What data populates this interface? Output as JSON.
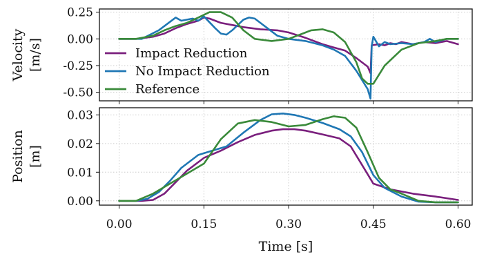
{
  "chart_data": [
    {
      "type": "line",
      "ylabel": [
        "Velocity",
        "[m/s]"
      ],
      "xlim": [
        -0.035,
        0.625
      ],
      "ylim": [
        -0.58,
        0.28
      ],
      "yticks": [
        0.25,
        0.0,
        -0.25,
        -0.5
      ],
      "ytick_labels": [
        "0.25",
        "0.00",
        "-0.25",
        "-0.50"
      ],
      "grid": true,
      "legend_position": "lower-left",
      "series": [
        {
          "name": "Impact Reduction",
          "color": "#7a1f7d",
          "x": [
            0,
            0.03,
            0.06,
            0.08,
            0.1,
            0.12,
            0.14,
            0.15,
            0.16,
            0.18,
            0.2,
            0.22,
            0.25,
            0.28,
            0.3,
            0.33,
            0.36,
            0.38,
            0.4,
            0.42,
            0.44,
            0.445,
            0.447,
            0.46,
            0.47,
            0.48,
            0.49,
            0.5,
            0.52,
            0.54,
            0.56,
            0.58,
            0.6
          ],
          "y": [
            0.0,
            0.0,
            0.02,
            0.05,
            0.1,
            0.14,
            0.17,
            0.2,
            0.19,
            0.15,
            0.13,
            0.11,
            0.09,
            0.08,
            0.06,
            0.01,
            -0.05,
            -0.08,
            -0.11,
            -0.18,
            -0.26,
            -0.32,
            -0.06,
            -0.05,
            -0.06,
            -0.04,
            -0.05,
            -0.03,
            -0.05,
            -0.03,
            -0.04,
            -0.02,
            -0.05
          ]
        },
        {
          "name": "No Impact Reduction",
          "color": "#1f77b4",
          "x": [
            0,
            0.04,
            0.07,
            0.09,
            0.1,
            0.11,
            0.13,
            0.14,
            0.15,
            0.17,
            0.18,
            0.19,
            0.2,
            0.21,
            0.22,
            0.23,
            0.24,
            0.26,
            0.28,
            0.3,
            0.33,
            0.36,
            0.38,
            0.4,
            0.42,
            0.44,
            0.445,
            0.447,
            0.45,
            0.46,
            0.47,
            0.48,
            0.5,
            0.52,
            0.54,
            0.55,
            0.56,
            0.58,
            0.6
          ],
          "y": [
            0.0,
            0.0,
            0.08,
            0.16,
            0.2,
            0.17,
            0.19,
            0.17,
            0.21,
            0.1,
            0.05,
            0.04,
            0.08,
            0.13,
            0.18,
            0.2,
            0.19,
            0.11,
            0.03,
            0.0,
            -0.02,
            -0.06,
            -0.1,
            -0.16,
            -0.3,
            -0.47,
            -0.56,
            -0.07,
            0.02,
            -0.07,
            -0.03,
            -0.05,
            -0.04,
            -0.05,
            -0.03,
            0.0,
            -0.03,
            0.0,
            0.0
          ]
        },
        {
          "name": "Reference",
          "color": "#3a8a3a",
          "x": [
            0,
            0.03,
            0.06,
            0.08,
            0.1,
            0.12,
            0.14,
            0.16,
            0.18,
            0.2,
            0.22,
            0.24,
            0.27,
            0.3,
            0.32,
            0.34,
            0.36,
            0.38,
            0.4,
            0.42,
            0.43,
            0.44,
            0.45,
            0.47,
            0.5,
            0.53,
            0.56,
            0.58,
            0.6
          ],
          "y": [
            0.0,
            0.0,
            0.03,
            0.08,
            0.12,
            0.15,
            0.2,
            0.25,
            0.25,
            0.2,
            0.08,
            0.0,
            -0.02,
            0.0,
            0.04,
            0.08,
            0.09,
            0.06,
            -0.03,
            -0.22,
            -0.37,
            -0.42,
            -0.42,
            -0.25,
            -0.1,
            -0.04,
            -0.02,
            0.0,
            0.0
          ]
        }
      ]
    },
    {
      "type": "line",
      "ylabel": [
        "Position",
        "[m]"
      ],
      "xlabel": "Time [s]",
      "xlim": [
        -0.035,
        0.625
      ],
      "ylim": [
        -0.0015,
        0.0325
      ],
      "yticks": [
        0.0,
        0.01,
        0.02,
        0.03
      ],
      "ytick_labels": [
        "0.00",
        "0.01",
        "0.02",
        "0.03"
      ],
      "xticks": [
        0.0,
        0.15,
        0.3,
        0.45,
        0.6
      ],
      "xtick_labels": [
        "0.00",
        "0.15",
        "0.30",
        "0.45",
        "0.60"
      ],
      "grid": true,
      "series": [
        {
          "name": "Impact Reduction",
          "color": "#7a1f7d",
          "x": [
            0,
            0.04,
            0.06,
            0.08,
            0.1,
            0.12,
            0.15,
            0.18,
            0.21,
            0.24,
            0.27,
            0.29,
            0.31,
            0.33,
            0.36,
            0.39,
            0.41,
            0.43,
            0.45,
            0.48,
            0.52,
            0.56,
            0.6
          ],
          "y": [
            0.0,
            0.0,
            0.0003,
            0.0025,
            0.0065,
            0.0105,
            0.015,
            0.0175,
            0.0205,
            0.023,
            0.0245,
            0.025,
            0.025,
            0.0245,
            0.0232,
            0.0218,
            0.019,
            0.0125,
            0.006,
            0.004,
            0.0025,
            0.0015,
            0.0003
          ]
        },
        {
          "name": "No Impact Reduction",
          "color": "#1f77b4",
          "x": [
            0,
            0.03,
            0.05,
            0.07,
            0.09,
            0.11,
            0.14,
            0.16,
            0.19,
            0.22,
            0.25,
            0.27,
            0.29,
            0.31,
            0.33,
            0.36,
            0.39,
            0.41,
            0.43,
            0.45,
            0.47,
            0.5,
            0.53,
            0.56,
            0.6
          ],
          "y": [
            0.0,
            0.0,
            0.0007,
            0.003,
            0.007,
            0.0115,
            0.016,
            0.0172,
            0.019,
            0.0238,
            0.0282,
            0.0302,
            0.0305,
            0.03,
            0.029,
            0.0272,
            0.025,
            0.0225,
            0.017,
            0.009,
            0.0045,
            0.0015,
            -0.0003,
            -0.0005,
            -0.0005
          ]
        },
        {
          "name": "Reference",
          "color": "#3a8a3a",
          "x": [
            0,
            0.03,
            0.06,
            0.09,
            0.12,
            0.15,
            0.18,
            0.21,
            0.24,
            0.27,
            0.3,
            0.33,
            0.36,
            0.38,
            0.4,
            0.42,
            0.44,
            0.46,
            0.48,
            0.5,
            0.53,
            0.56,
            0.6
          ],
          "y": [
            0.0,
            0.0,
            0.0025,
            0.006,
            0.0095,
            0.013,
            0.0215,
            0.027,
            0.0282,
            0.0275,
            0.026,
            0.0265,
            0.0285,
            0.0295,
            0.029,
            0.0255,
            0.017,
            0.008,
            0.004,
            0.0025,
            0.0,
            -0.0005,
            -0.0005
          ]
        }
      ]
    }
  ],
  "xlabel": "Time [s]"
}
